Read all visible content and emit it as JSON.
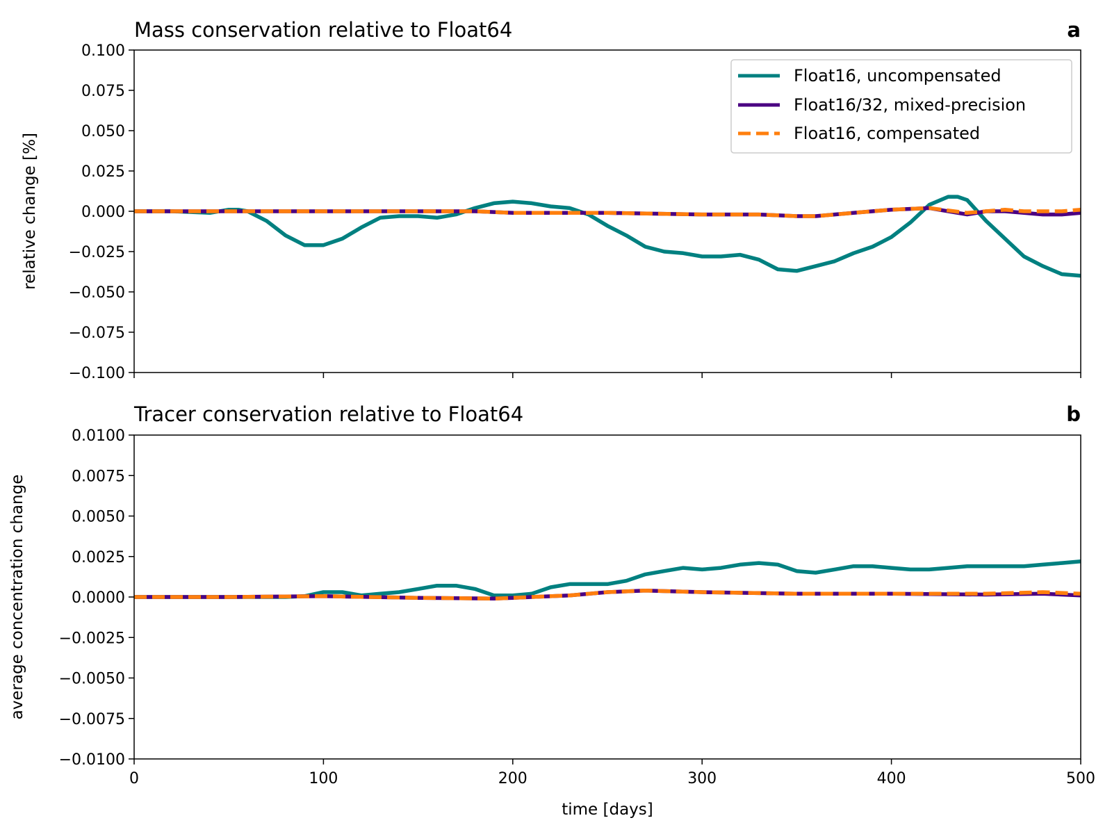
{
  "chart_data": [
    {
      "type": "line",
      "title": "Mass conservation relative to Float64",
      "panel_label": "a",
      "xlabel": "",
      "ylabel": "relative change [%]",
      "xlim": [
        0,
        500
      ],
      "ylim": [
        -0.1,
        0.1
      ],
      "x_ticks": [
        0,
        100,
        200,
        300,
        400,
        500
      ],
      "x_ticklabels_shown": false,
      "y_ticks": [
        0.1,
        0.075,
        0.05,
        0.025,
        0.0,
        -0.025,
        -0.05,
        -0.075,
        -0.1
      ],
      "y_ticklabels": [
        "0.100",
        "0.075",
        "0.050",
        "0.025",
        "0.000",
        "−0.025",
        "−0.050",
        "−0.075",
        "−0.100"
      ],
      "grid": false,
      "legend": {
        "placement": "upper right",
        "entries": [
          "Float16, uncompensated",
          "Float16/32, mixed-precision",
          "Float16, compensated"
        ]
      },
      "series": [
        {
          "name": "Float16, uncompensated",
          "color": "#008080",
          "style": "solid",
          "points": [
            [
              0,
              0
            ],
            [
              20,
              0
            ],
            [
              40,
              -0.001
            ],
            [
              50,
              0.001
            ],
            [
              55,
              0.001
            ],
            [
              60,
              0
            ],
            [
              70,
              -0.006
            ],
            [
              80,
              -0.015
            ],
            [
              90,
              -0.021
            ],
            [
              100,
              -0.021
            ],
            [
              110,
              -0.017
            ],
            [
              120,
              -0.01
            ],
            [
              130,
              -0.004
            ],
            [
              140,
              -0.003
            ],
            [
              150,
              -0.003
            ],
            [
              160,
              -0.004
            ],
            [
              170,
              -0.002
            ],
            [
              180,
              0.002
            ],
            [
              190,
              0.005
            ],
            [
              200,
              0.006
            ],
            [
              210,
              0.005
            ],
            [
              220,
              0.003
            ],
            [
              230,
              0.002
            ],
            [
              240,
              -0.002
            ],
            [
              250,
              -0.009
            ],
            [
              260,
              -0.015
            ],
            [
              270,
              -0.022
            ],
            [
              280,
              -0.025
            ],
            [
              290,
              -0.026
            ],
            [
              300,
              -0.028
            ],
            [
              310,
              -0.028
            ],
            [
              320,
              -0.027
            ],
            [
              330,
              -0.03
            ],
            [
              340,
              -0.036
            ],
            [
              350,
              -0.037
            ],
            [
              360,
              -0.034
            ],
            [
              370,
              -0.031
            ],
            [
              380,
              -0.026
            ],
            [
              390,
              -0.022
            ],
            [
              400,
              -0.016
            ],
            [
              410,
              -0.007
            ],
            [
              420,
              0.004
            ],
            [
              430,
              0.009
            ],
            [
              435,
              0.009
            ],
            [
              440,
              0.007
            ],
            [
              450,
              -0.006
            ],
            [
              460,
              -0.017
            ],
            [
              470,
              -0.028
            ],
            [
              480,
              -0.034
            ],
            [
              490,
              -0.039
            ],
            [
              500,
              -0.04
            ]
          ]
        },
        {
          "name": "Float16/32, mixed-precision",
          "color": "#4b0082",
          "style": "solid",
          "points": [
            [
              0,
              0
            ],
            [
              50,
              0
            ],
            [
              100,
              0
            ],
            [
              150,
              0
            ],
            [
              180,
              0
            ],
            [
              200,
              -0.001
            ],
            [
              250,
              -0.001
            ],
            [
              300,
              -0.002
            ],
            [
              330,
              -0.002
            ],
            [
              350,
              -0.003
            ],
            [
              360,
              -0.003
            ],
            [
              380,
              -0.001
            ],
            [
              400,
              0.001
            ],
            [
              420,
              0.002
            ],
            [
              440,
              -0.002
            ],
            [
              450,
              0
            ],
            [
              460,
              0
            ],
            [
              470,
              -0.001
            ],
            [
              480,
              -0.002
            ],
            [
              490,
              -0.002
            ],
            [
              500,
              -0.001
            ]
          ]
        },
        {
          "name": "Float16, compensated",
          "color": "#ff7f0e",
          "style": "dashed",
          "points": [
            [
              0,
              0
            ],
            [
              50,
              0
            ],
            [
              100,
              0
            ],
            [
              150,
              0
            ],
            [
              180,
              0
            ],
            [
              200,
              -0.001
            ],
            [
              250,
              -0.001
            ],
            [
              300,
              -0.002
            ],
            [
              330,
              -0.002
            ],
            [
              350,
              -0.003
            ],
            [
              360,
              -0.003
            ],
            [
              380,
              -0.001
            ],
            [
              400,
              0.001
            ],
            [
              420,
              0.002
            ],
            [
              440,
              -0.001
            ],
            [
              450,
              0
            ],
            [
              460,
              0.001
            ],
            [
              470,
              0
            ],
            [
              480,
              0
            ],
            [
              490,
              0
            ],
            [
              500,
              0.001
            ]
          ]
        }
      ]
    },
    {
      "type": "line",
      "title": "Tracer conservation relative to Float64",
      "panel_label": "b",
      "xlabel": "time [days]",
      "ylabel": "average concentration change",
      "xlim": [
        0,
        500
      ],
      "ylim": [
        -0.01,
        0.01
      ],
      "x_ticks": [
        0,
        100,
        200,
        300,
        400,
        500
      ],
      "x_ticklabels": [
        "0",
        "100",
        "200",
        "300",
        "400",
        "500"
      ],
      "y_ticks": [
        0.01,
        0.0075,
        0.005,
        0.0025,
        0.0,
        -0.0025,
        -0.005,
        -0.0075,
        -0.01
      ],
      "y_ticklabels": [
        "0.0100",
        "0.0075",
        "0.0050",
        "0.0025",
        "0.0000",
        "−0.0025",
        "−0.0050",
        "−0.0075",
        "−0.0100"
      ],
      "grid": false,
      "series": [
        {
          "name": "Float16, uncompensated",
          "color": "#008080",
          "style": "solid",
          "points": [
            [
              0,
              0
            ],
            [
              50,
              0
            ],
            [
              80,
              0
            ],
            [
              90,
              5e-05
            ],
            [
              100,
              0.0003
            ],
            [
              110,
              0.0003
            ],
            [
              120,
              0.0001
            ],
            [
              130,
              0.0002
            ],
            [
              140,
              0.0003
            ],
            [
              150,
              0.0005
            ],
            [
              160,
              0.0007
            ],
            [
              170,
              0.0007
            ],
            [
              180,
              0.0005
            ],
            [
              190,
              0.0001
            ],
            [
              200,
              0.0001
            ],
            [
              210,
              0.0002
            ],
            [
              220,
              0.0006
            ],
            [
              230,
              0.0008
            ],
            [
              240,
              0.0008
            ],
            [
              250,
              0.0008
            ],
            [
              260,
              0.001
            ],
            [
              270,
              0.0014
            ],
            [
              280,
              0.0016
            ],
            [
              290,
              0.0018
            ],
            [
              300,
              0.0017
            ],
            [
              310,
              0.0018
            ],
            [
              320,
              0.002
            ],
            [
              330,
              0.0021
            ],
            [
              340,
              0.002
            ],
            [
              350,
              0.0016
            ],
            [
              360,
              0.0015
            ],
            [
              370,
              0.0017
            ],
            [
              380,
              0.0019
            ],
            [
              390,
              0.0019
            ],
            [
              400,
              0.0018
            ],
            [
              410,
              0.0017
            ],
            [
              420,
              0.0017
            ],
            [
              430,
              0.0018
            ],
            [
              440,
              0.0019
            ],
            [
              450,
              0.0019
            ],
            [
              460,
              0.0019
            ],
            [
              470,
              0.0019
            ],
            [
              480,
              0.002
            ],
            [
              490,
              0.0021
            ],
            [
              500,
              0.0022
            ]
          ]
        },
        {
          "name": "Float16/32, mixed-precision",
          "color": "#4b0082",
          "style": "solid",
          "points": [
            [
              0,
              0
            ],
            [
              50,
              0
            ],
            [
              100,
              5e-05
            ],
            [
              150,
              -5e-05
            ],
            [
              190,
              -0.0001
            ],
            [
              200,
              -5e-05
            ],
            [
              230,
              0.0001
            ],
            [
              250,
              0.0003
            ],
            [
              270,
              0.0004
            ],
            [
              300,
              0.0003
            ],
            [
              350,
              0.0002
            ],
            [
              400,
              0.0002
            ],
            [
              450,
              0.00015
            ],
            [
              480,
              0.0002
            ],
            [
              500,
              0.0001
            ]
          ]
        },
        {
          "name": "Float16, compensated",
          "color": "#ff7f0e",
          "style": "dashed",
          "points": [
            [
              0,
              0
            ],
            [
              50,
              0
            ],
            [
              100,
              5e-05
            ],
            [
              150,
              -5e-05
            ],
            [
              190,
              -0.0001
            ],
            [
              200,
              -5e-05
            ],
            [
              230,
              0.0001
            ],
            [
              250,
              0.0003
            ],
            [
              270,
              0.0004
            ],
            [
              300,
              0.0003
            ],
            [
              350,
              0.0002
            ],
            [
              400,
              0.0002
            ],
            [
              450,
              0.0002
            ],
            [
              480,
              0.0003
            ],
            [
              500,
              0.0002
            ]
          ]
        }
      ]
    }
  ]
}
